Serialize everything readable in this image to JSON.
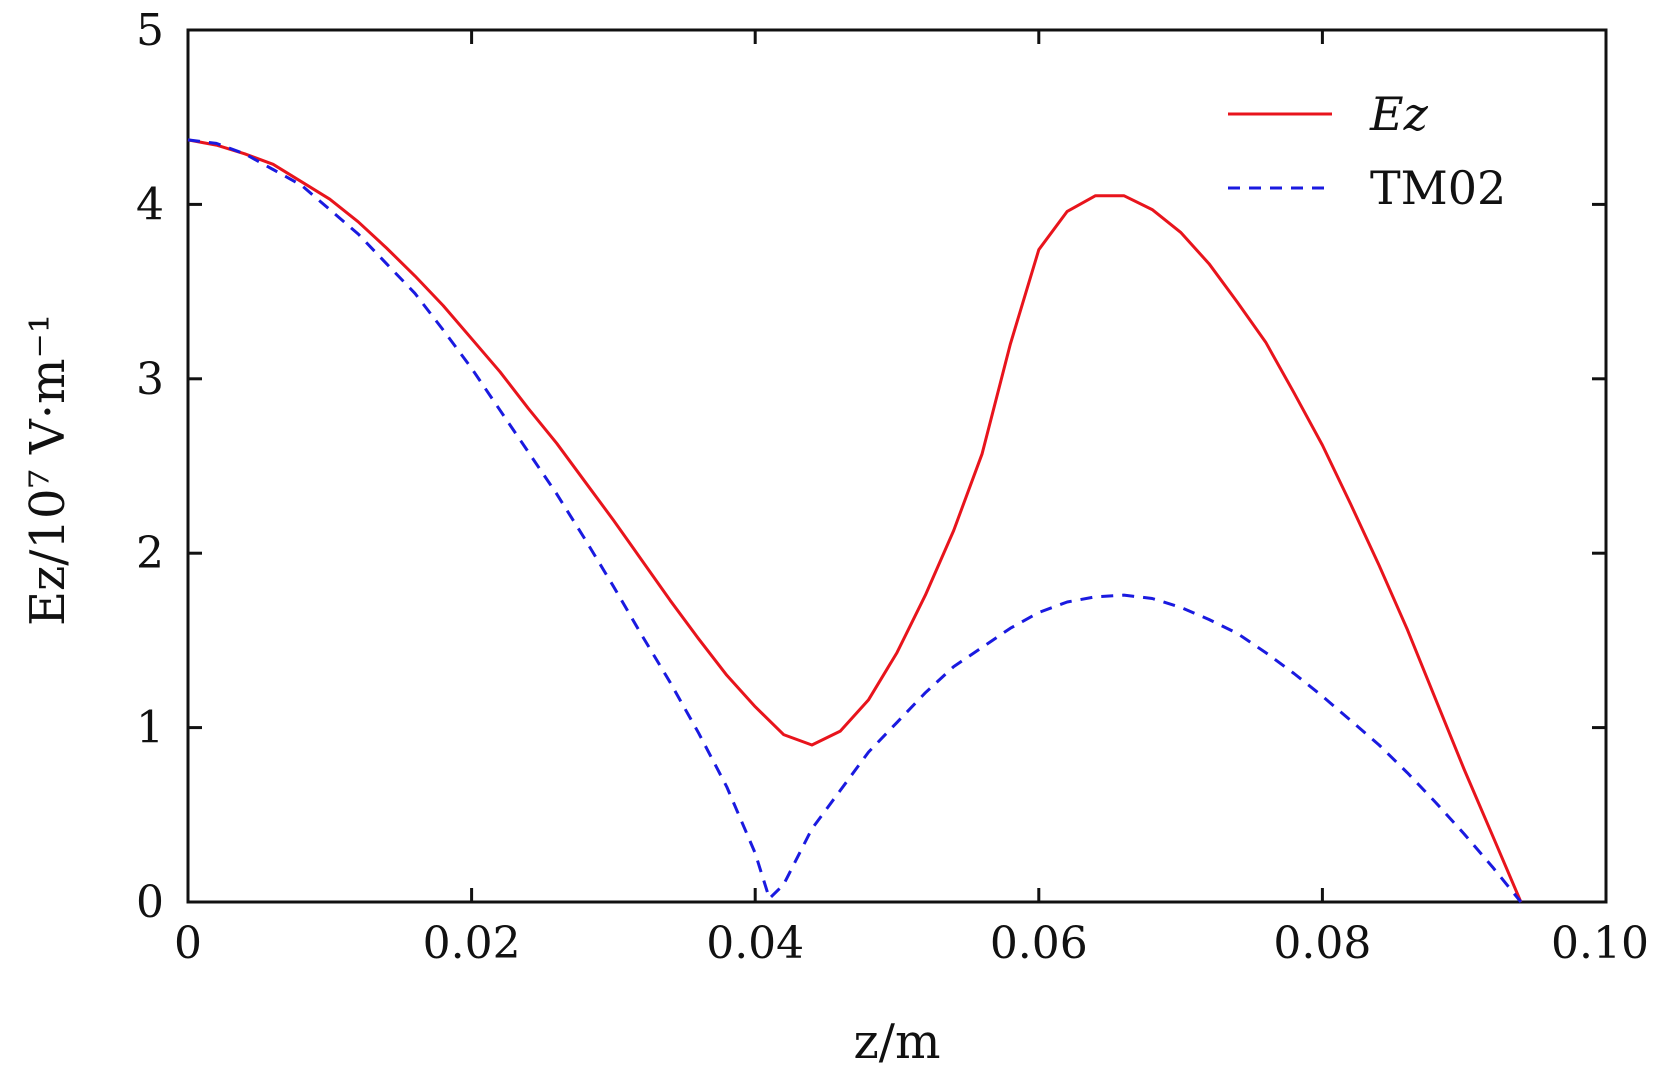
{
  "chart_data": {
    "type": "line",
    "xlabel": "z/m",
    "ylabel": "Ez/10⁷ V·m⁻¹",
    "xlim": [
      0,
      0.1
    ],
    "ylim": [
      0,
      5
    ],
    "xticks": [
      "0",
      "0.02",
      "0.04",
      "0.06",
      "0.08",
      "0.10"
    ],
    "yticks": [
      "0",
      "1",
      "2",
      "3",
      "4",
      "5"
    ],
    "grid": false,
    "legend_position": "top-right",
    "series": [
      {
        "name": "Ez",
        "color": "#e8141c",
        "style": "solid",
        "x": [
          0,
          0.002,
          0.004,
          0.006,
          0.008,
          0.01,
          0.012,
          0.014,
          0.016,
          0.018,
          0.02,
          0.022,
          0.024,
          0.026,
          0.028,
          0.03,
          0.032,
          0.034,
          0.036,
          0.038,
          0.04,
          0.042,
          0.044,
          0.046,
          0.048,
          0.05,
          0.052,
          0.054,
          0.056,
          0.058,
          0.06,
          0.062,
          0.064,
          0.066,
          0.068,
          0.07,
          0.072,
          0.074,
          0.076,
          0.078,
          0.08,
          0.082,
          0.084,
          0.086,
          0.088,
          0.09,
          0.092,
          0.094
        ],
        "y": [
          4.37,
          4.34,
          4.29,
          4.23,
          4.13,
          4.03,
          3.9,
          3.75,
          3.59,
          3.42,
          3.23,
          3.04,
          2.83,
          2.63,
          2.41,
          2.19,
          1.96,
          1.73,
          1.51,
          1.3,
          1.12,
          0.96,
          0.9,
          0.98,
          1.16,
          1.43,
          1.76,
          2.13,
          2.57,
          3.2,
          3.74,
          3.96,
          4.05,
          4.05,
          3.97,
          3.84,
          3.66,
          3.44,
          3.21,
          2.92,
          2.62,
          2.28,
          1.93,
          1.56,
          1.16,
          0.76,
          0.38,
          0.0
        ]
      },
      {
        "name": "TM02",
        "color": "#1a1ae0",
        "style": "dashed",
        "x": [
          0,
          0.002,
          0.004,
          0.006,
          0.008,
          0.01,
          0.012,
          0.014,
          0.016,
          0.018,
          0.02,
          0.022,
          0.024,
          0.026,
          0.028,
          0.03,
          0.032,
          0.034,
          0.036,
          0.038,
          0.04,
          0.041,
          0.042,
          0.044,
          0.046,
          0.048,
          0.05,
          0.052,
          0.054,
          0.056,
          0.058,
          0.06,
          0.062,
          0.064,
          0.066,
          0.068,
          0.07,
          0.072,
          0.074,
          0.076,
          0.078,
          0.08,
          0.082,
          0.084,
          0.086,
          0.088,
          0.09,
          0.092,
          0.094
        ],
        "y": [
          4.37,
          4.35,
          4.29,
          4.2,
          4.11,
          3.97,
          3.83,
          3.66,
          3.49,
          3.28,
          3.06,
          2.82,
          2.58,
          2.34,
          2.08,
          1.81,
          1.53,
          1.26,
          0.97,
          0.66,
          0.28,
          0.02,
          0.1,
          0.42,
          0.64,
          0.86,
          1.03,
          1.2,
          1.35,
          1.46,
          1.57,
          1.66,
          1.72,
          1.75,
          1.76,
          1.74,
          1.69,
          1.62,
          1.54,
          1.43,
          1.31,
          1.18,
          1.04,
          0.9,
          0.74,
          0.57,
          0.39,
          0.2,
          0.0
        ]
      }
    ]
  }
}
